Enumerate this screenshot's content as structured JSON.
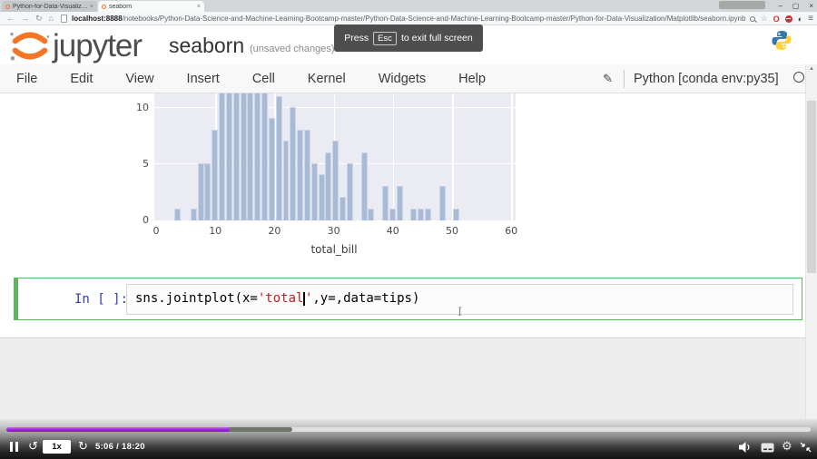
{
  "browser": {
    "tabs": [
      {
        "title": "Python-for-Data-Visualiz…"
      },
      {
        "title": "seaborn"
      }
    ],
    "tab_close_glyph": "×",
    "window_controls": {
      "minimize": "–",
      "maximize": "▢",
      "close": "×"
    },
    "nav": {
      "back": "←",
      "forward": "→",
      "refresh": "↻",
      "home": "⌂"
    },
    "url": {
      "host": "localhost:8888",
      "path": "/notebooks/Python-Data-Science-and-Machine-Learning-Bootcamp-master/Python-Data-Science-and-Machine-Learning-Bootcamp-master/Python-for-Data-Visualization/Matplotlib/seaborn.ipynb"
    },
    "ext": {
      "star": "☆",
      "o_badge": "O",
      "half_moon": "◐",
      "menu": "≡"
    }
  },
  "jupyter": {
    "logo_text": "jupyter",
    "notebook_title": "seaborn",
    "notebook_subtitle": "(unsaved changes)",
    "edit_icon": "✎",
    "kernel_name": "Python [conda env:py35]"
  },
  "tooltip": {
    "press": "Press",
    "key": "Esc",
    "rest": "to exit full screen"
  },
  "menu": {
    "items": [
      "File",
      "Edit",
      "View",
      "Insert",
      "Cell",
      "Kernel",
      "Widgets",
      "Help"
    ]
  },
  "chart_data": {
    "type": "bar",
    "title": "",
    "xlabel": "total_bill",
    "ylabel": "",
    "x_ticks": [
      0,
      10,
      20,
      30,
      40,
      50,
      60
    ],
    "y_ticks": [
      0,
      5,
      10
    ],
    "xlim": [
      0,
      60
    ],
    "ylim_visible": [
      0,
      11
    ],
    "grid": true,
    "bin_width": 1.2,
    "bins": [
      {
        "x": 3.1,
        "count": 1
      },
      {
        "x": 5.9,
        "count": 1
      },
      {
        "x": 7.0,
        "count": 5
      },
      {
        "x": 8.2,
        "count": 5
      },
      {
        "x": 9.4,
        "count": 8
      },
      {
        "x": 10.6,
        "count": 12
      },
      {
        "x": 11.8,
        "count": 13
      },
      {
        "x": 13.0,
        "count": 12
      },
      {
        "x": 14.2,
        "count": 12
      },
      {
        "x": 15.4,
        "count": 13
      },
      {
        "x": 16.6,
        "count": 12
      },
      {
        "x": 17.8,
        "count": 12
      },
      {
        "x": 19.0,
        "count": 9
      },
      {
        "x": 20.2,
        "count": 11
      },
      {
        "x": 21.4,
        "count": 7
      },
      {
        "x": 22.6,
        "count": 10
      },
      {
        "x": 23.8,
        "count": 8
      },
      {
        "x": 25.0,
        "count": 8
      },
      {
        "x": 26.2,
        "count": 5
      },
      {
        "x": 27.4,
        "count": 4
      },
      {
        "x": 28.6,
        "count": 6
      },
      {
        "x": 29.8,
        "count": 7
      },
      {
        "x": 31.0,
        "count": 2
      },
      {
        "x": 32.2,
        "count": 5
      },
      {
        "x": 34.6,
        "count": 6
      },
      {
        "x": 35.8,
        "count": 1
      },
      {
        "x": 38.2,
        "count": 3
      },
      {
        "x": 39.4,
        "count": 1
      },
      {
        "x": 40.6,
        "count": 3
      },
      {
        "x": 43.0,
        "count": 1
      },
      {
        "x": 44.2,
        "count": 1
      },
      {
        "x": 45.4,
        "count": 1
      },
      {
        "x": 47.8,
        "count": 3
      },
      {
        "x": 50.2,
        "count": 1
      }
    ],
    "colors": {
      "plot_bg": "#eaebf3",
      "bar_fill": "#a9bad5"
    }
  },
  "cell": {
    "prompt": "In [ ]:",
    "tokens": [
      {
        "text": "sns.jointplot(x=",
        "cls": "code-plain"
      },
      {
        "text": "'total",
        "cls": "code-string"
      },
      {
        "cursor": true
      },
      {
        "text": "'",
        "cls": "code-string"
      },
      {
        "text": ",y=,data=tips)",
        "cls": "code-plain"
      }
    ]
  },
  "player": {
    "speed_label": "1x",
    "time_display": "5:06 / 18:20",
    "progress_percent": 27.8,
    "buffered_percent": 35.5,
    "replay_icon": "↺",
    "forward_icon": "↻",
    "gear_icon": "⚙",
    "accent_purple": "#9b27d8"
  }
}
